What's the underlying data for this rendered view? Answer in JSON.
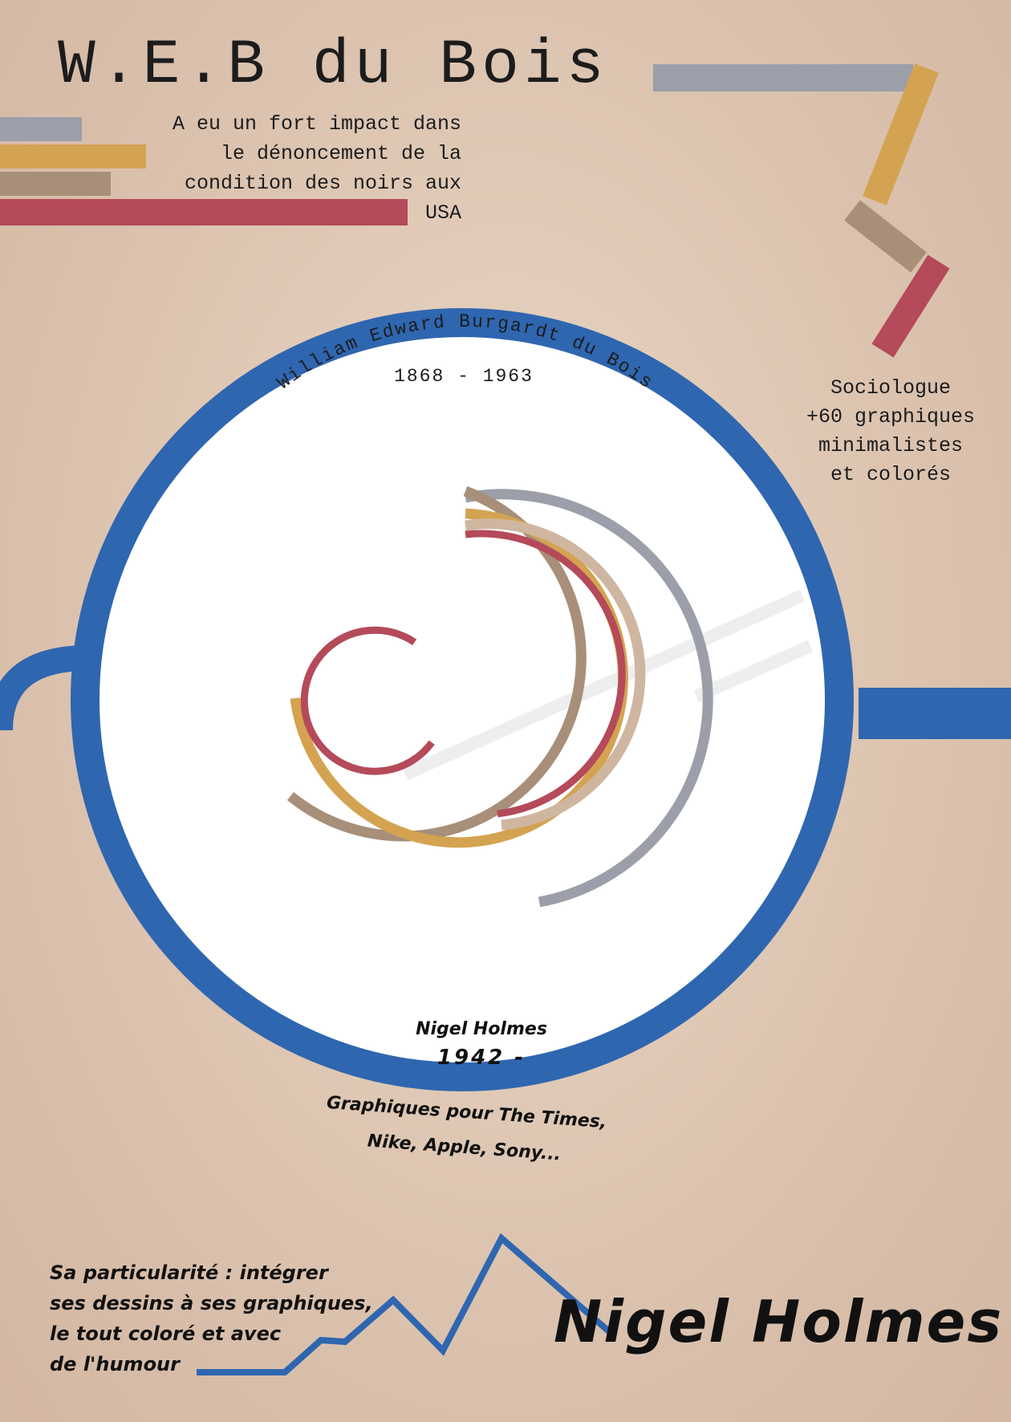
{
  "title": "W.E.B du Bois",
  "intro": {
    "lines": [
      "A eu un fort impact dans",
      "le dénoncement de la",
      "condition des noirs aux",
      "USA"
    ]
  },
  "arc_text": {
    "name": "William Edward Burgardt du Bois",
    "dates": "1868 - 1963"
  },
  "facts": {
    "lines": [
      "Sociologue",
      "+60 graphiques",
      "minimalistes",
      "et colorés"
    ]
  },
  "nigel": {
    "name": "Nigel Holmes",
    "year": "1942 -",
    "works": [
      "Graphiques pour The Times,",
      "Nike, Apple, Sony..."
    ],
    "particular": [
      "Sa particularité : intégrer",
      "ses dessins à ses graphiques,",
      "le tout coloré et avec",
      "de l'humour"
    ],
    "big_name": "Nigel Holmes"
  },
  "colors": {
    "blue": "#2f66b0",
    "grey_blue": "#9c9ea9",
    "gold": "#d4a351",
    "taupe": "#a88f79",
    "red": "#b44a5a",
    "beige": "#cfb6a0"
  }
}
